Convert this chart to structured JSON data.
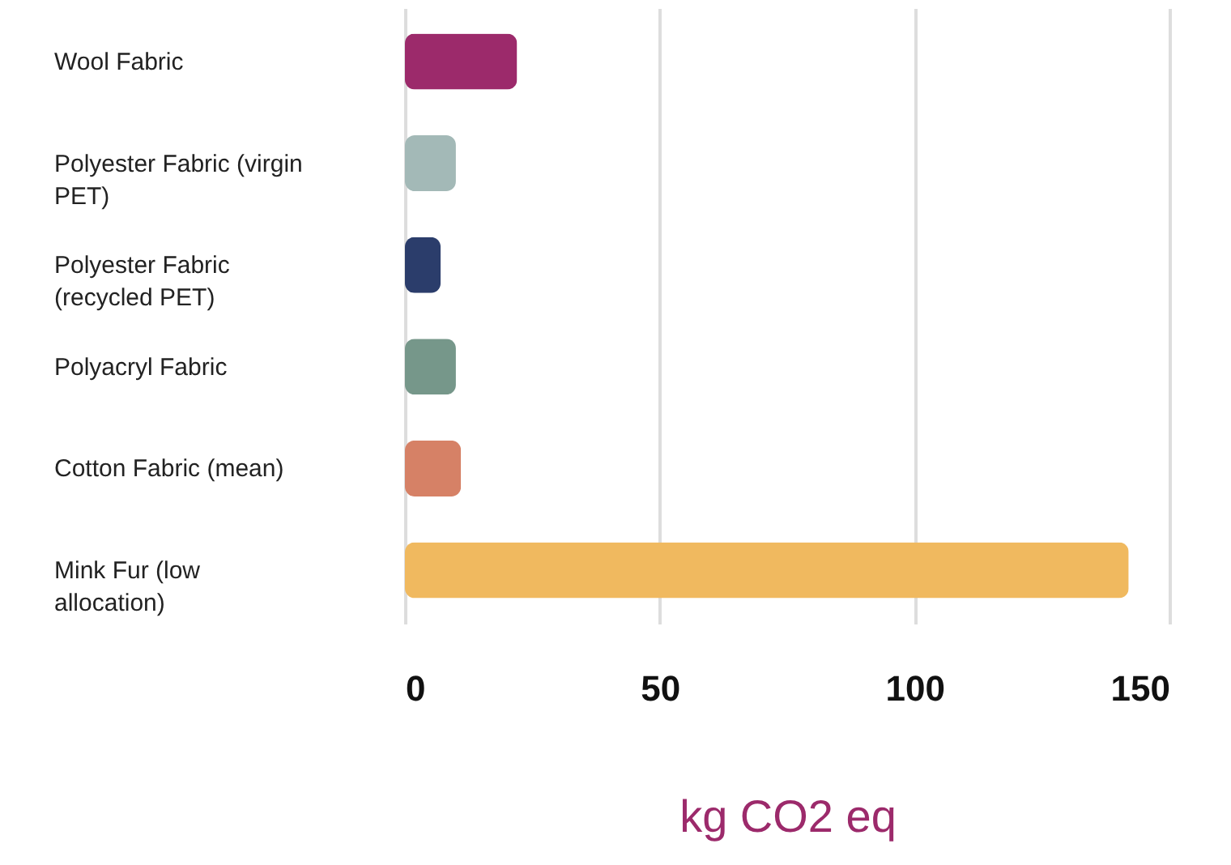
{
  "chart_data": {
    "type": "bar",
    "orientation": "horizontal",
    "xlabel": "kg CO2 eq",
    "categories": [
      "Wool Fabric",
      "Polyester Fabric (virgin PET)",
      "Polyester Fabric (recycled PET)",
      "Polyacryl Fabric",
      "Cotton Fabric (mean)",
      "Mink Fur (low allocation)"
    ],
    "values": [
      22,
      10,
      7,
      10,
      11,
      142
    ],
    "colors": [
      "#9c2a6b",
      "#a3b9b7",
      "#2b3d6b",
      "#76978a",
      "#d68166",
      "#f0b95f"
    ],
    "xlim": [
      0,
      150
    ],
    "xticks": [
      0,
      50,
      100,
      150
    ],
    "grid": "x"
  }
}
